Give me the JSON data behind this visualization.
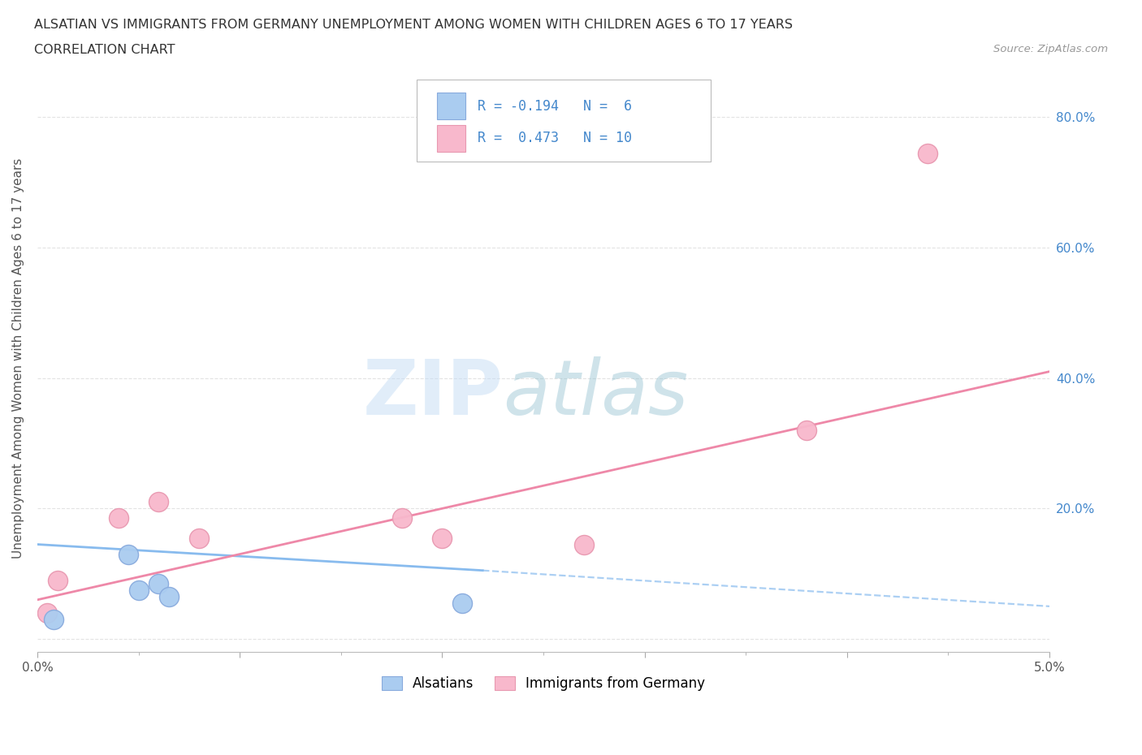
{
  "title_line1": "ALSATIAN VS IMMIGRANTS FROM GERMANY UNEMPLOYMENT AMONG WOMEN WITH CHILDREN AGES 6 TO 17 YEARS",
  "title_line2": "CORRELATION CHART",
  "source_text": "Source: ZipAtlas.com",
  "ylabel": "Unemployment Among Women with Children Ages 6 to 17 years",
  "xlim": [
    0.0,
    0.05
  ],
  "ylim": [
    -0.02,
    0.88
  ],
  "alsatian_x": [
    0.0008,
    0.0045,
    0.005,
    0.006,
    0.0065,
    0.021
  ],
  "alsatian_y": [
    0.03,
    0.13,
    0.075,
    0.085,
    0.065,
    0.055
  ],
  "immigrant_x": [
    0.0005,
    0.001,
    0.004,
    0.006,
    0.008,
    0.018,
    0.02,
    0.027,
    0.038,
    0.044
  ],
  "immigrant_y": [
    0.04,
    0.09,
    0.185,
    0.21,
    0.155,
    0.185,
    0.155,
    0.145,
    0.32,
    0.745
  ],
  "alsatian_color": "#aaccf0",
  "alsatian_edge_color": "#88aadd",
  "immigrant_color": "#f8b8cc",
  "immigrant_edge_color": "#e898b0",
  "alsatian_R": -0.194,
  "alsatian_N": 6,
  "immigrant_R": 0.473,
  "immigrant_N": 10,
  "trend_al_solid_x0": 0.0,
  "trend_al_solid_x1": 0.022,
  "trend_al_solid_y0": 0.145,
  "trend_al_solid_y1": 0.105,
  "trend_al_dash_x0": 0.022,
  "trend_al_dash_x1": 0.05,
  "trend_al_dash_y0": 0.105,
  "trend_al_dash_y1": 0.05,
  "trend_im_x0": 0.0,
  "trend_im_x1": 0.05,
  "trend_im_y0": 0.06,
  "trend_im_y1": 0.41,
  "watermark_zip": "ZIP",
  "watermark_atlas": "atlas",
  "legend_R_color": "#4488cc",
  "background_color": "#ffffff",
  "grid_color": "#dddddd",
  "right_ytick_labels": [
    "20.0%",
    "40.0%",
    "60.0%",
    "80.0%"
  ],
  "right_ytick_positions": [
    0.2,
    0.4,
    0.6,
    0.8
  ]
}
